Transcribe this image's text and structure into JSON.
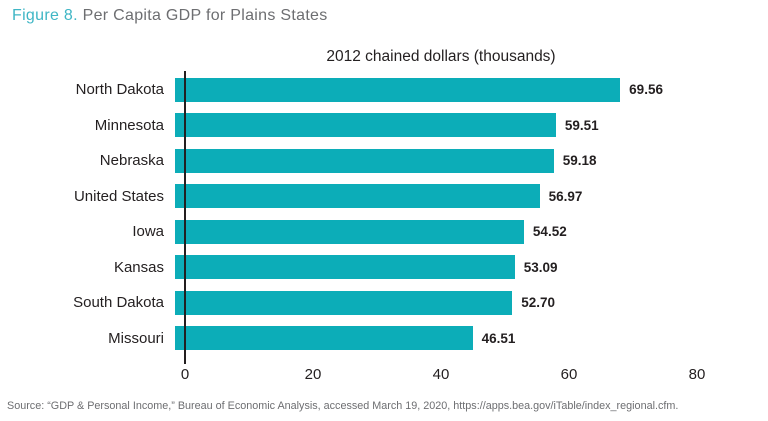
{
  "title": {
    "figure_label": "Figure 8.",
    "text": "Per Capita GDP for Plains States"
  },
  "chart_data": {
    "type": "bar",
    "orientation": "horizontal",
    "title": "2012 chained dollars (thousands)",
    "categories": [
      "North Dakota",
      "Minnesota",
      "Nebraska",
      "United States",
      "Iowa",
      "Kansas",
      "South Dakota",
      "Missouri"
    ],
    "values": [
      69.56,
      59.51,
      59.18,
      56.97,
      54.52,
      53.09,
      52.7,
      46.51
    ],
    "value_labels": [
      "69.56",
      "59.51",
      "59.18",
      "56.97",
      "54.52",
      "53.09",
      "52.70",
      "46.51"
    ],
    "x_ticks": [
      0,
      20,
      40,
      60,
      80
    ],
    "x_tick_labels": [
      "0",
      "20",
      "40",
      "60",
      "80"
    ],
    "xlim": [
      0,
      80
    ],
    "xlabel": "",
    "ylabel": "",
    "grid": false,
    "legend": false
  },
  "source": "Source: “GDP & Personal Income,” Bureau of Economic Analysis, accessed March 19, 2020, https://apps.bea.gov/iTable/index_regional.cfm.",
  "colors": {
    "bar": "#0cadb8",
    "figure_accent": "#3fb6c5",
    "title_gray": "#6d6e71",
    "text_dark": "#231f20",
    "axis": "#231f20",
    "source_gray": "#6d6e71"
  }
}
